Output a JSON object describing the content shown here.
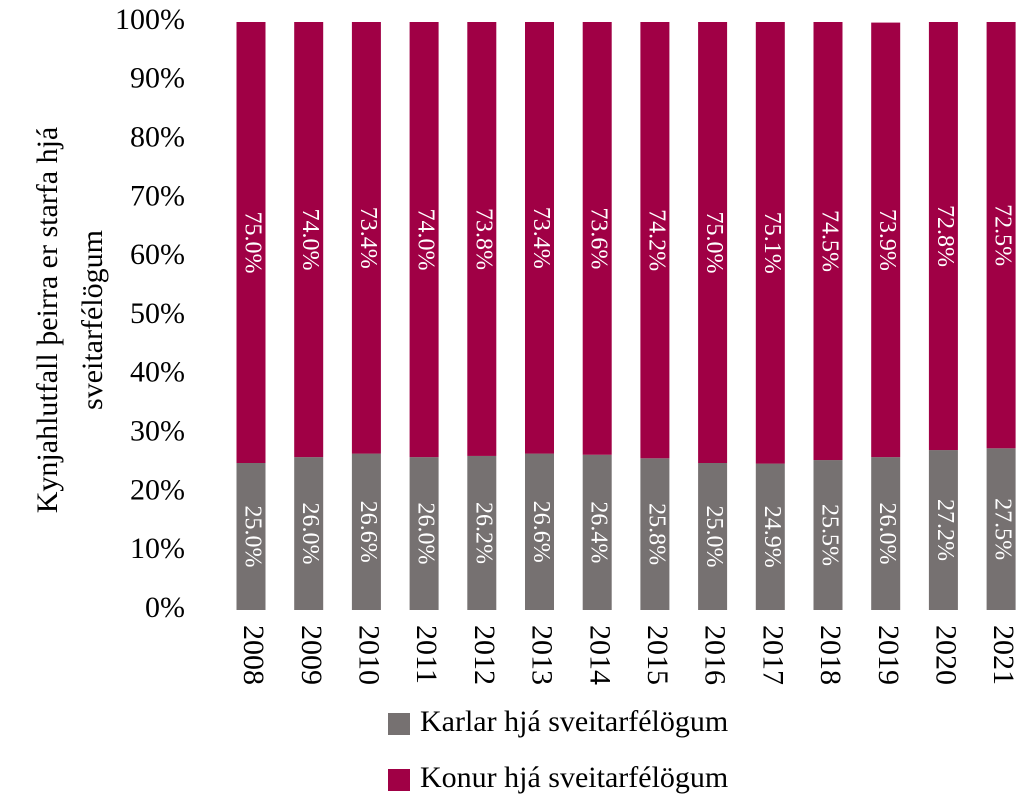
{
  "chart_data": {
    "type": "stacked_bar",
    "ylabel": [
      "Kynjahlutfall þeirra er starfa hjá",
      "sveitarfélögum"
    ],
    "categories": [
      "2008",
      "2009",
      "2010",
      "2011",
      "2012",
      "2013",
      "2014",
      "2015",
      "2016",
      "2017",
      "2018",
      "2019",
      "2020",
      "2021"
    ],
    "series": [
      {
        "name": "Karlar hjá sveitarfélögum",
        "color": "#767171",
        "values": [
          25.0,
          26.0,
          26.6,
          26.0,
          26.2,
          26.6,
          26.4,
          25.8,
          25.0,
          24.9,
          25.5,
          26.0,
          27.2,
          27.5
        ],
        "value_labels": [
          "25.0%",
          "26.0%",
          "26.6%",
          "26.0%",
          "26.2%",
          "26.6%",
          "26.4%",
          "25.8%",
          "25.0%",
          "24.9%",
          "25.5%",
          "26.0%",
          "27.2%",
          "27.5%"
        ]
      },
      {
        "name": "Konur hjá sveitarfélögum",
        "color": "#a00045",
        "values": [
          75.0,
          74.0,
          73.4,
          74.0,
          73.8,
          73.4,
          73.6,
          74.2,
          75.0,
          75.1,
          74.5,
          73.9,
          72.8,
          72.5
        ],
        "value_labels": [
          "75.0%",
          "74.0%",
          "73.4%",
          "74.0%",
          "73.8%",
          "73.4%",
          "73.6%",
          "74.2%",
          "75.0%",
          "75.1%",
          "74.5%",
          "73.9%",
          "72.8%",
          "72.5%"
        ]
      }
    ],
    "ylim": [
      0,
      100
    ],
    "yticks": [
      {
        "value": 0,
        "label": "0%"
      },
      {
        "value": 10,
        "label": "10%"
      },
      {
        "value": 20,
        "label": "20%"
      },
      {
        "value": 30,
        "label": "30%"
      },
      {
        "value": 40,
        "label": "40%"
      },
      {
        "value": 50,
        "label": "50%"
      },
      {
        "value": 60,
        "label": "60%"
      },
      {
        "value": 70,
        "label": "70%"
      },
      {
        "value": 80,
        "label": "80%"
      },
      {
        "value": 90,
        "label": "90%"
      },
      {
        "value": 100,
        "label": "100%"
      }
    ],
    "grid": false
  }
}
